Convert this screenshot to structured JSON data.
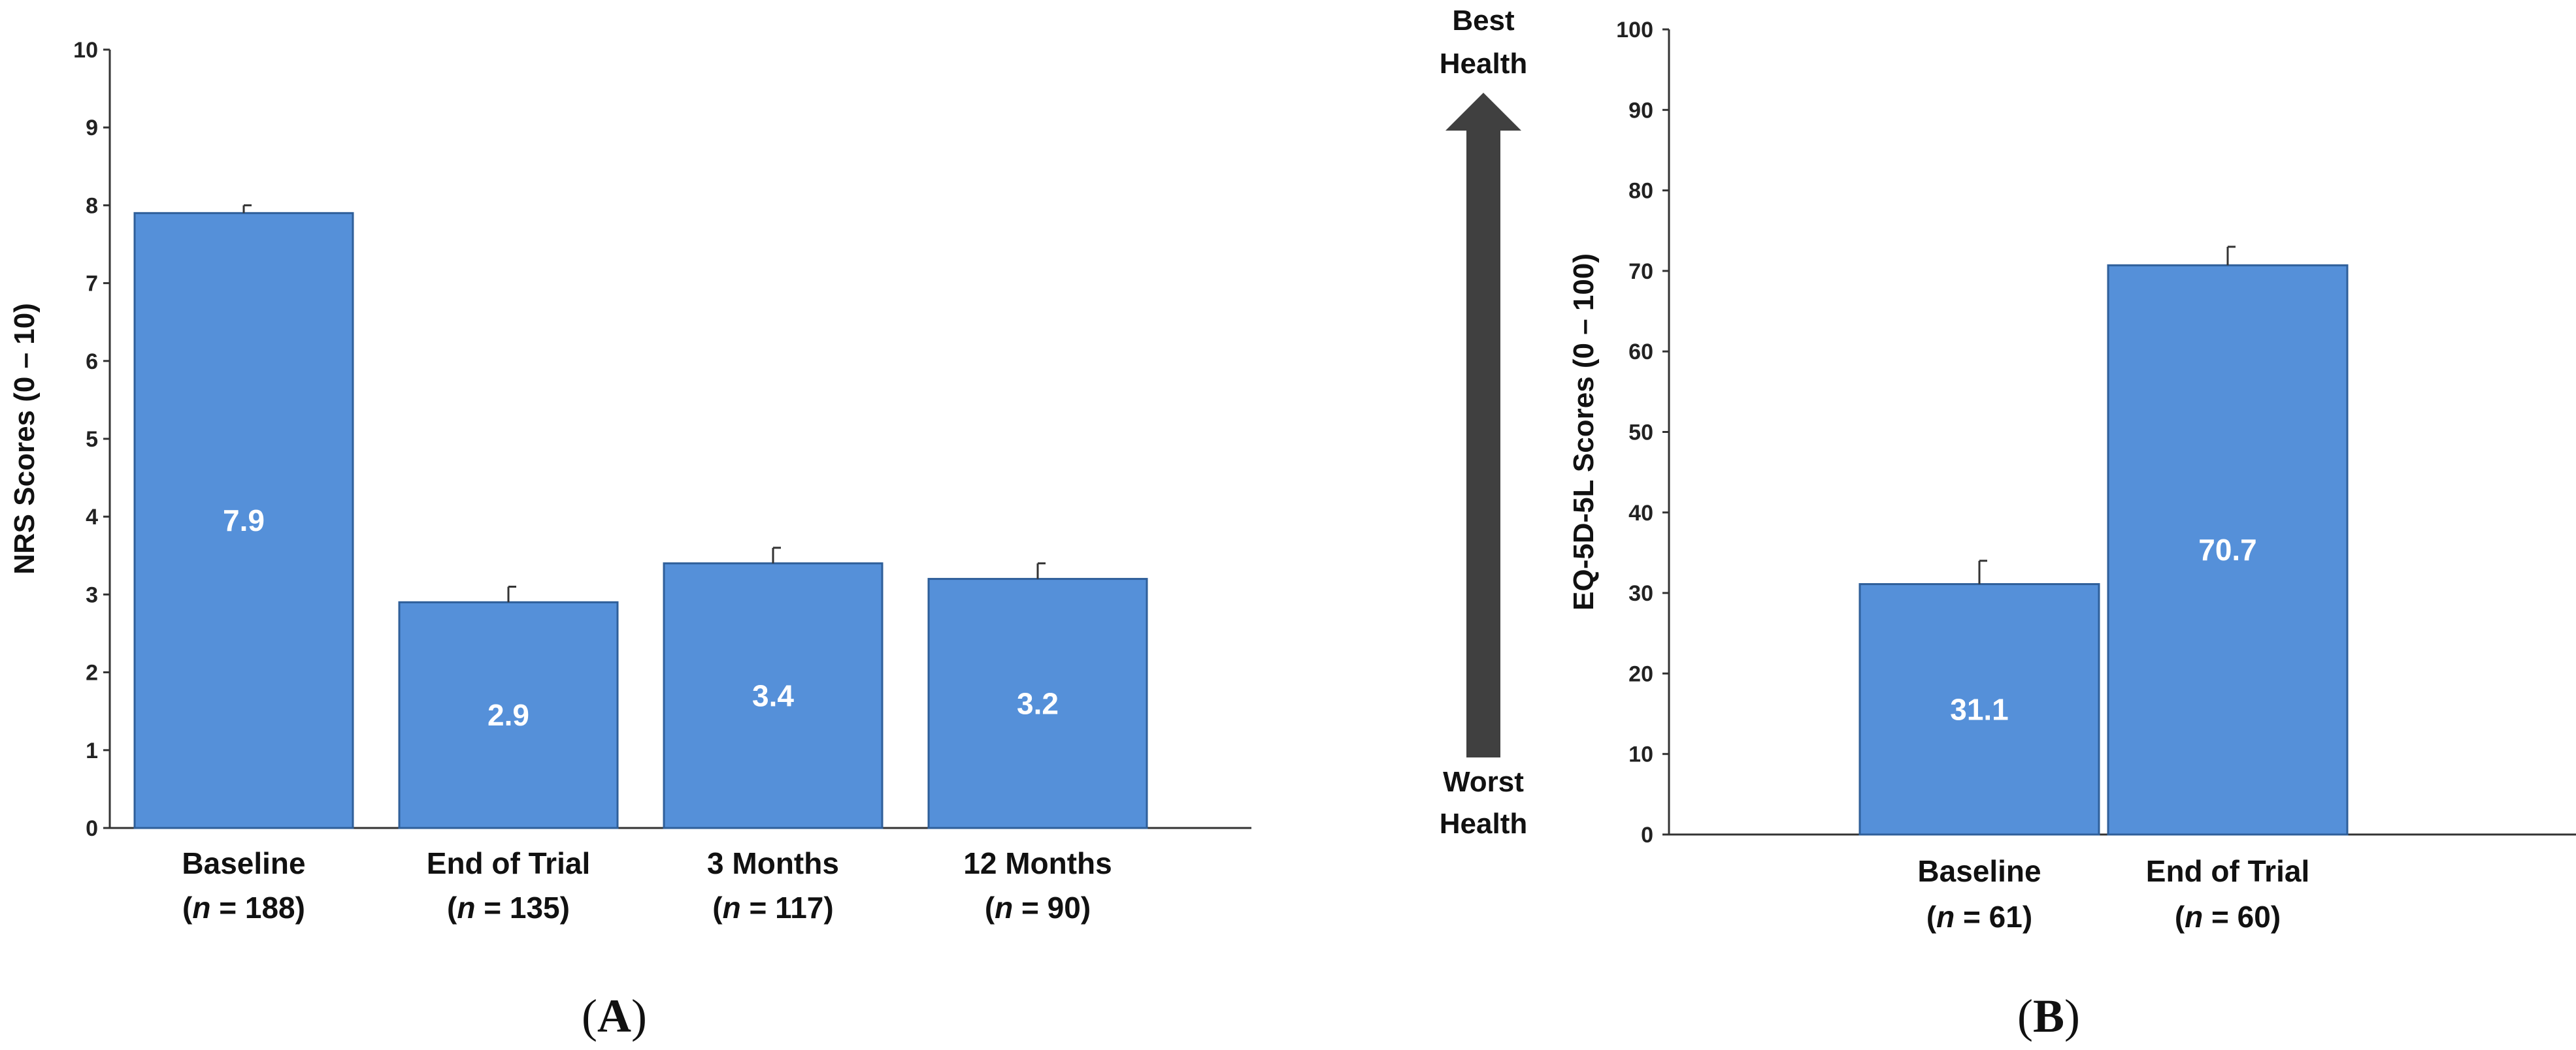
{
  "chart_data": [
    {
      "panel": "A",
      "type": "bar",
      "ylabel": "NRS Scores (0 – 10)",
      "ylim": [
        0,
        10
      ],
      "yticks": [
        0,
        1,
        2,
        3,
        4,
        5,
        6,
        7,
        8,
        9,
        10
      ],
      "categories": [
        {
          "name": "Baseline",
          "n": "(n = 188)"
        },
        {
          "name": "End of Trial",
          "n": "(n = 135)"
        },
        {
          "name": "3 Months",
          "n": "(n = 117)"
        },
        {
          "name": "12 Months",
          "n": "(n = 90)"
        }
      ],
      "values": [
        7.9,
        2.9,
        3.4,
        3.2
      ],
      "error_upper": [
        8.0,
        3.1,
        3.6,
        3.4
      ],
      "value_labels": [
        "7.9",
        "2.9",
        "3.4",
        "3.2"
      ],
      "bar_color": "#5590d9",
      "grid": false,
      "legend": "none"
    },
    {
      "panel": "B",
      "type": "bar",
      "ylabel": "EQ-5D-5L Scores (0 – 100)",
      "ylim": [
        0,
        100
      ],
      "yticks": [
        0,
        10,
        20,
        30,
        40,
        50,
        60,
        70,
        80,
        90,
        100
      ],
      "categories": [
        {
          "name": "Baseline",
          "n": "(n = 61)"
        },
        {
          "name": "End of Trial",
          "n": "(n = 60)"
        }
      ],
      "values": [
        31.1,
        70.7
      ],
      "error_upper": [
        34.0,
        73.0
      ],
      "value_labels": [
        "31.1",
        "70.7"
      ],
      "bar_color": "#5590d9",
      "grid": false,
      "legend": "none"
    }
  ],
  "arrow": {
    "top_label_line1": "Best",
    "top_label_line2": "Health",
    "bottom_label_line1": "Worst",
    "bottom_label_line2": "Health",
    "color": "#404040"
  },
  "panel_labels": [
    "A",
    "B"
  ]
}
